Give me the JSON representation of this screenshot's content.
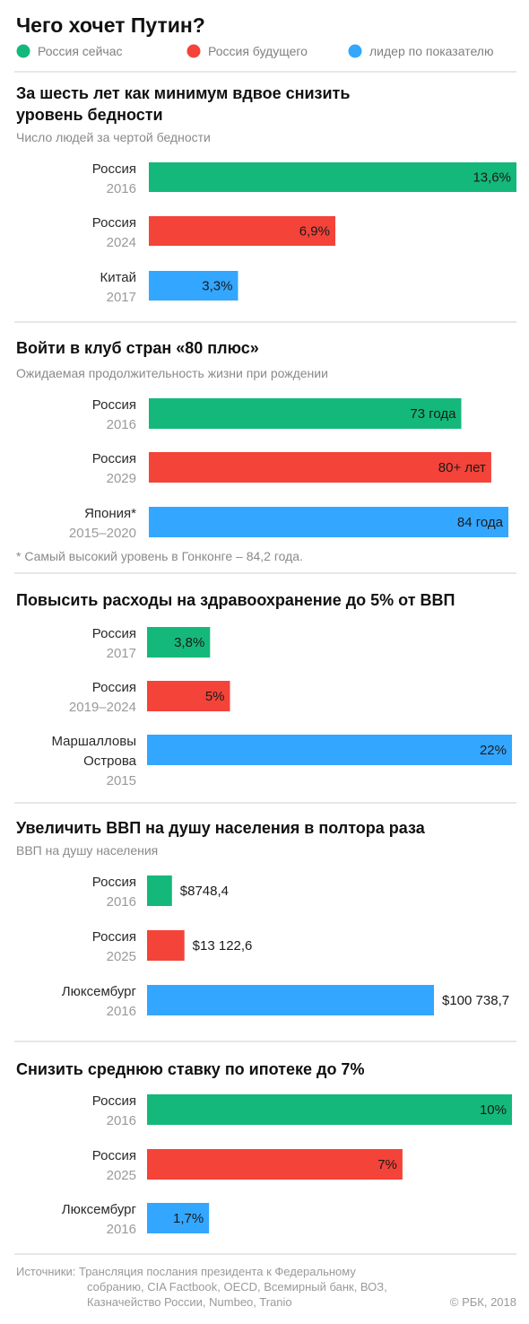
{
  "title": "Чего хочет Путин?",
  "legend": [
    {
      "label": "Россия сейчас",
      "color": "#14b87a"
    },
    {
      "label": "Россия будущего",
      "color": "#f44339"
    },
    {
      "label": "лидер по показателю",
      "color": "#33a6ff"
    }
  ],
  "colors": {
    "current": "#14b87a",
    "future": "#f44339",
    "leader": "#33a6ff"
  },
  "chart_data": [
    {
      "type": "bar",
      "title": "За шесть лет как минимум вдвое снизить уровень бедности",
      "subtitle": "Число людей за чертой бедности",
      "bars": [
        {
          "label": [
            "Россия"
          ],
          "year": "2016",
          "value": 13.6,
          "display": "13,6%",
          "color": "current"
        },
        {
          "label": [
            "Россия"
          ],
          "year": "2024",
          "value": 6.9,
          "display": "6,9%",
          "color": "future"
        },
        {
          "label": [
            "Китай"
          ],
          "year": "2017",
          "value": 3.3,
          "display": "3,3%",
          "color": "leader"
        }
      ]
    },
    {
      "type": "bar",
      "title": "Войти в клуб стран «80 плюс»",
      "subtitle": "Ожидаемая продолжительность жизни при рождении",
      "bars": [
        {
          "label": [
            "Россия"
          ],
          "year": "2016",
          "value": 73,
          "display": "73 года",
          "color": "current"
        },
        {
          "label": [
            "Россия"
          ],
          "year": "2029",
          "value": 80,
          "display": "80+ лет",
          "color": "future"
        },
        {
          "label": [
            "Япония*"
          ],
          "year": "2015–2020",
          "value": 84,
          "display": "84 года",
          "color": "leader"
        }
      ],
      "footnote": "* Самый высокий уровень в Гонконге – 84,2 года."
    },
    {
      "type": "bar",
      "title": "Повысить расходы на здравоохранение до 5% от ВВП",
      "bars": [
        {
          "label": [
            "Россия"
          ],
          "year": "2017",
          "value": 3.8,
          "display": "3,8%",
          "color": "current"
        },
        {
          "label": [
            "Россия"
          ],
          "year": "2019–2024",
          "value": 5,
          "display": "5%",
          "color": "future"
        },
        {
          "label": [
            "Маршалловы",
            "Острова"
          ],
          "year": "2015",
          "value": 22,
          "display": "22%",
          "color": "leader"
        }
      ]
    },
    {
      "type": "bar",
      "title": "Увеличить ВВП на душу населения в полтора раза",
      "subtitle": "ВВП на душу населения",
      "bars": [
        {
          "label": [
            "Россия"
          ],
          "year": "2016",
          "value": 8748.4,
          "display": "$8748,4",
          "color": "current"
        },
        {
          "label": [
            "Россия"
          ],
          "year": "2025",
          "value": 13122.6,
          "display": "$13 122,6",
          "color": "future"
        },
        {
          "label": [
            "Люксембург"
          ],
          "year": "2016",
          "value": 100738.7,
          "display": "$100 738,7",
          "color": "leader"
        }
      ]
    },
    {
      "type": "bar",
      "title": "Снизить среднюю ставку по ипотеке до 7%",
      "bars": [
        {
          "label": [
            "Россия"
          ],
          "year": "2016",
          "value": 10,
          "display": "10%",
          "color": "current"
        },
        {
          "label": [
            "Россия"
          ],
          "year": "2025",
          "value": 7,
          "display": "7%",
          "color": "future"
        },
        {
          "label": [
            "Люксембург"
          ],
          "year": "2016",
          "value": 1.7,
          "display": "1,7%",
          "color": "leader"
        }
      ]
    }
  ],
  "sources": [
    "Источники: Трансляция послания президента к Федеральному",
    "собранию, CIA Factbook, OECD, Всемирный банк, ВОЗ,",
    "Казначейство России, Numbeo, Tranio"
  ],
  "copyright": "© РБК, 2018"
}
